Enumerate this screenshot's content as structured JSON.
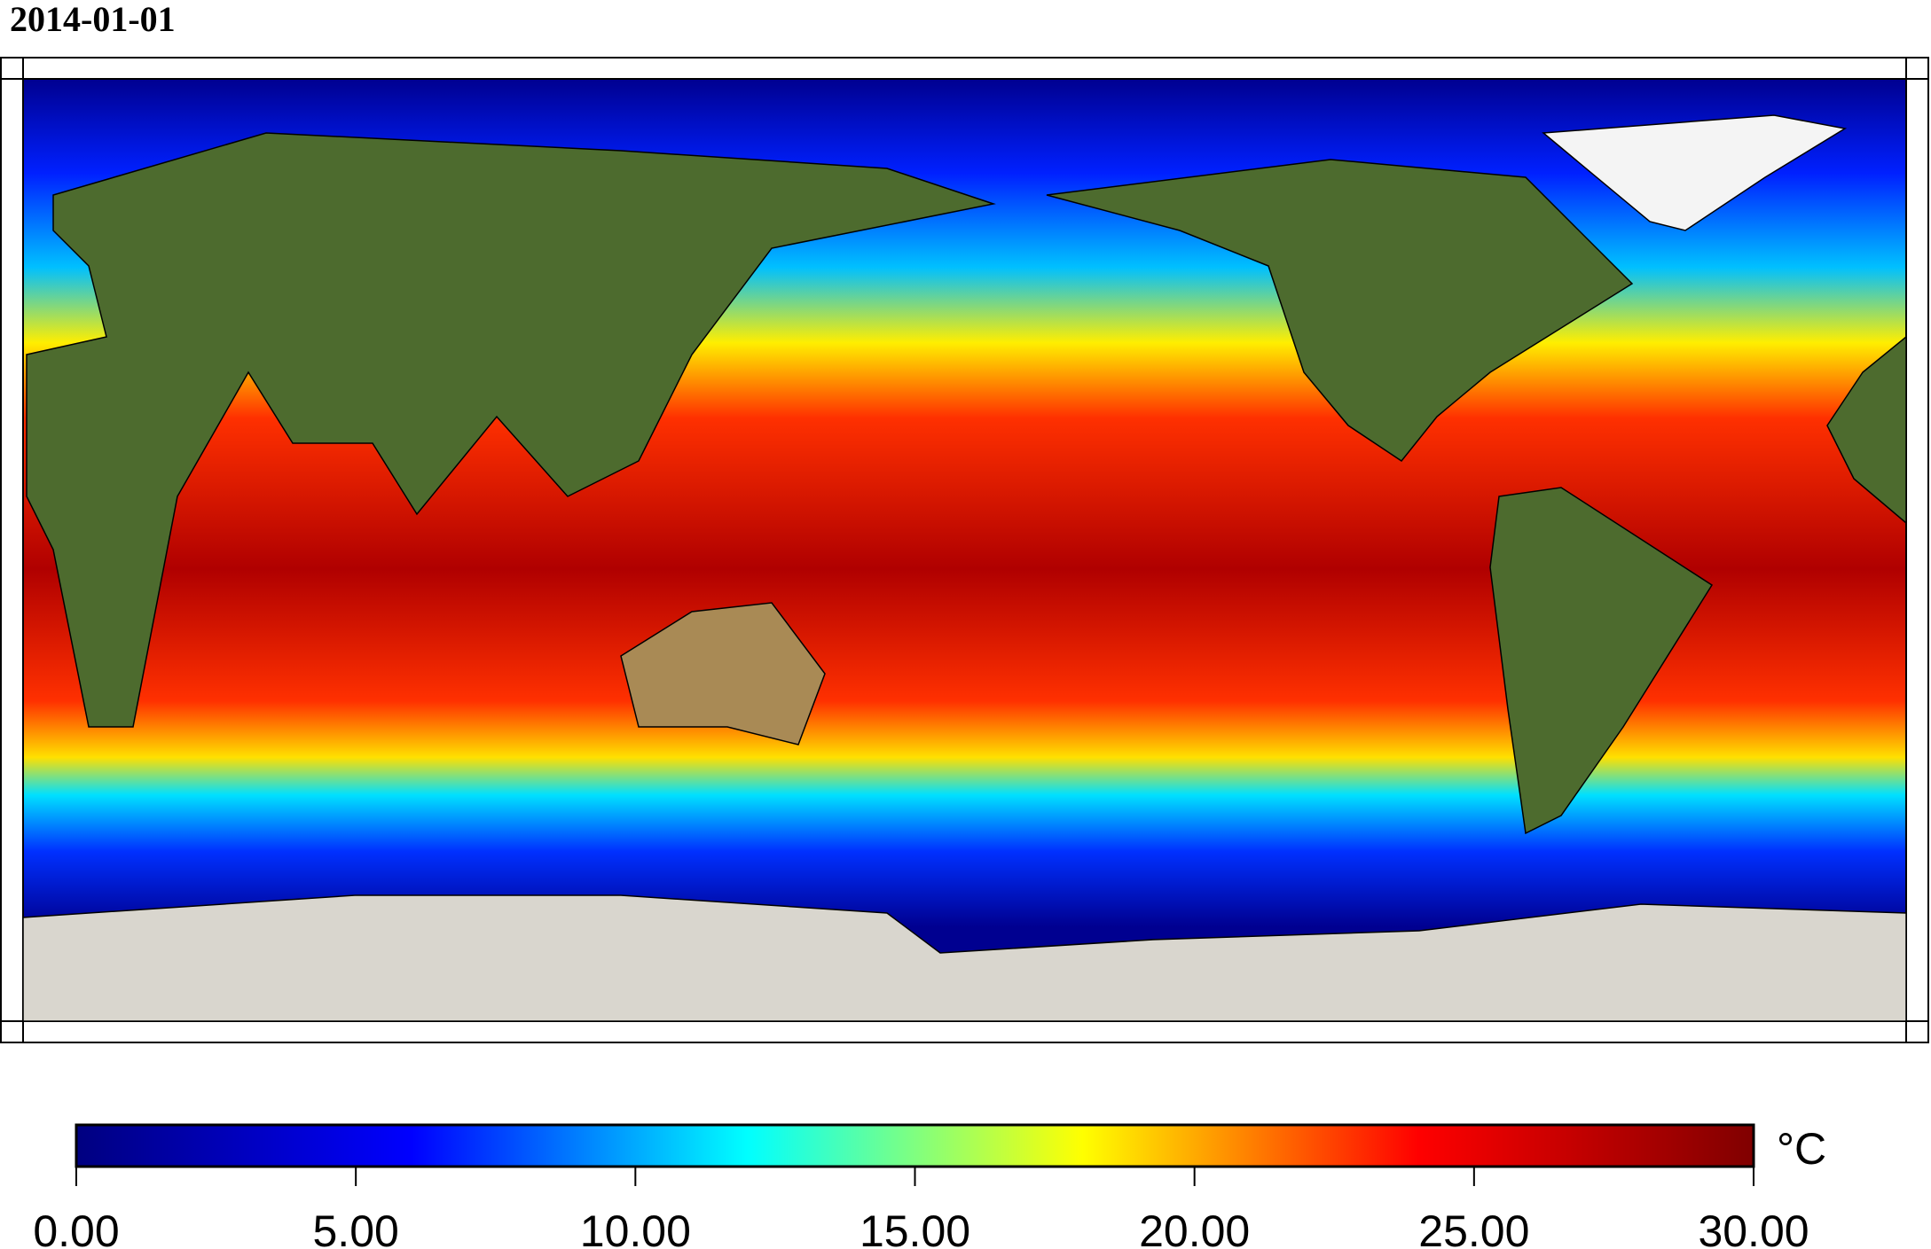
{
  "title": "2014-01-01",
  "colorbar": {
    "unit": "°C",
    "range": [
      0,
      30
    ],
    "ticks": [
      {
        "value": 0,
        "label": "0.00"
      },
      {
        "value": 5,
        "label": "5.00"
      },
      {
        "value": 10,
        "label": "10.00"
      },
      {
        "value": 15,
        "label": "15.00"
      },
      {
        "value": 20,
        "label": "20.00"
      },
      {
        "value": 25,
        "label": "25.00"
      },
      {
        "value": 30,
        "label": "30.00"
      }
    ],
    "colors": [
      "#000080",
      "#0000ff",
      "#00ffff",
      "#ffff00",
      "#ff0000",
      "#800000"
    ]
  }
}
